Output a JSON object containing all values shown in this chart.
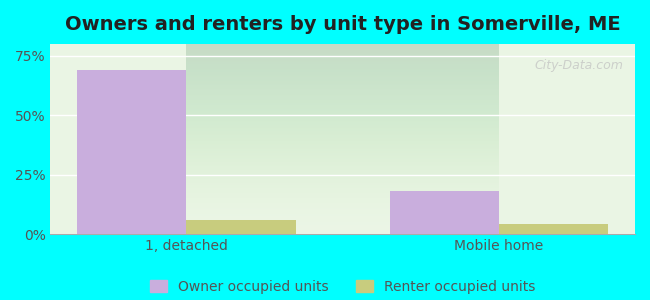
{
  "title": "Owners and renters by unit type in Somerville, ME",
  "categories": [
    "1, detached",
    "Mobile home"
  ],
  "owner_values": [
    69,
    18
  ],
  "renter_values": [
    6,
    4
  ],
  "owner_color": "#c9aedd",
  "renter_color": "#c8cc7e",
  "background_color": "#00ffff",
  "plot_bg_gradient_top": "#e8f5e2",
  "plot_bg_gradient_bottom": "#e8f5e2",
  "yticks": [
    0,
    25,
    50,
    75
  ],
  "ytick_labels": [
    "0%",
    "25%",
    "50%",
    "75%"
  ],
  "ylim": [
    0,
    80
  ],
  "bar_width": 0.35,
  "legend_labels": [
    "Owner occupied units",
    "Renter occupied units"
  ],
  "watermark": "City-Data.com",
  "title_fontsize": 14,
  "tick_fontsize": 10,
  "legend_fontsize": 10
}
